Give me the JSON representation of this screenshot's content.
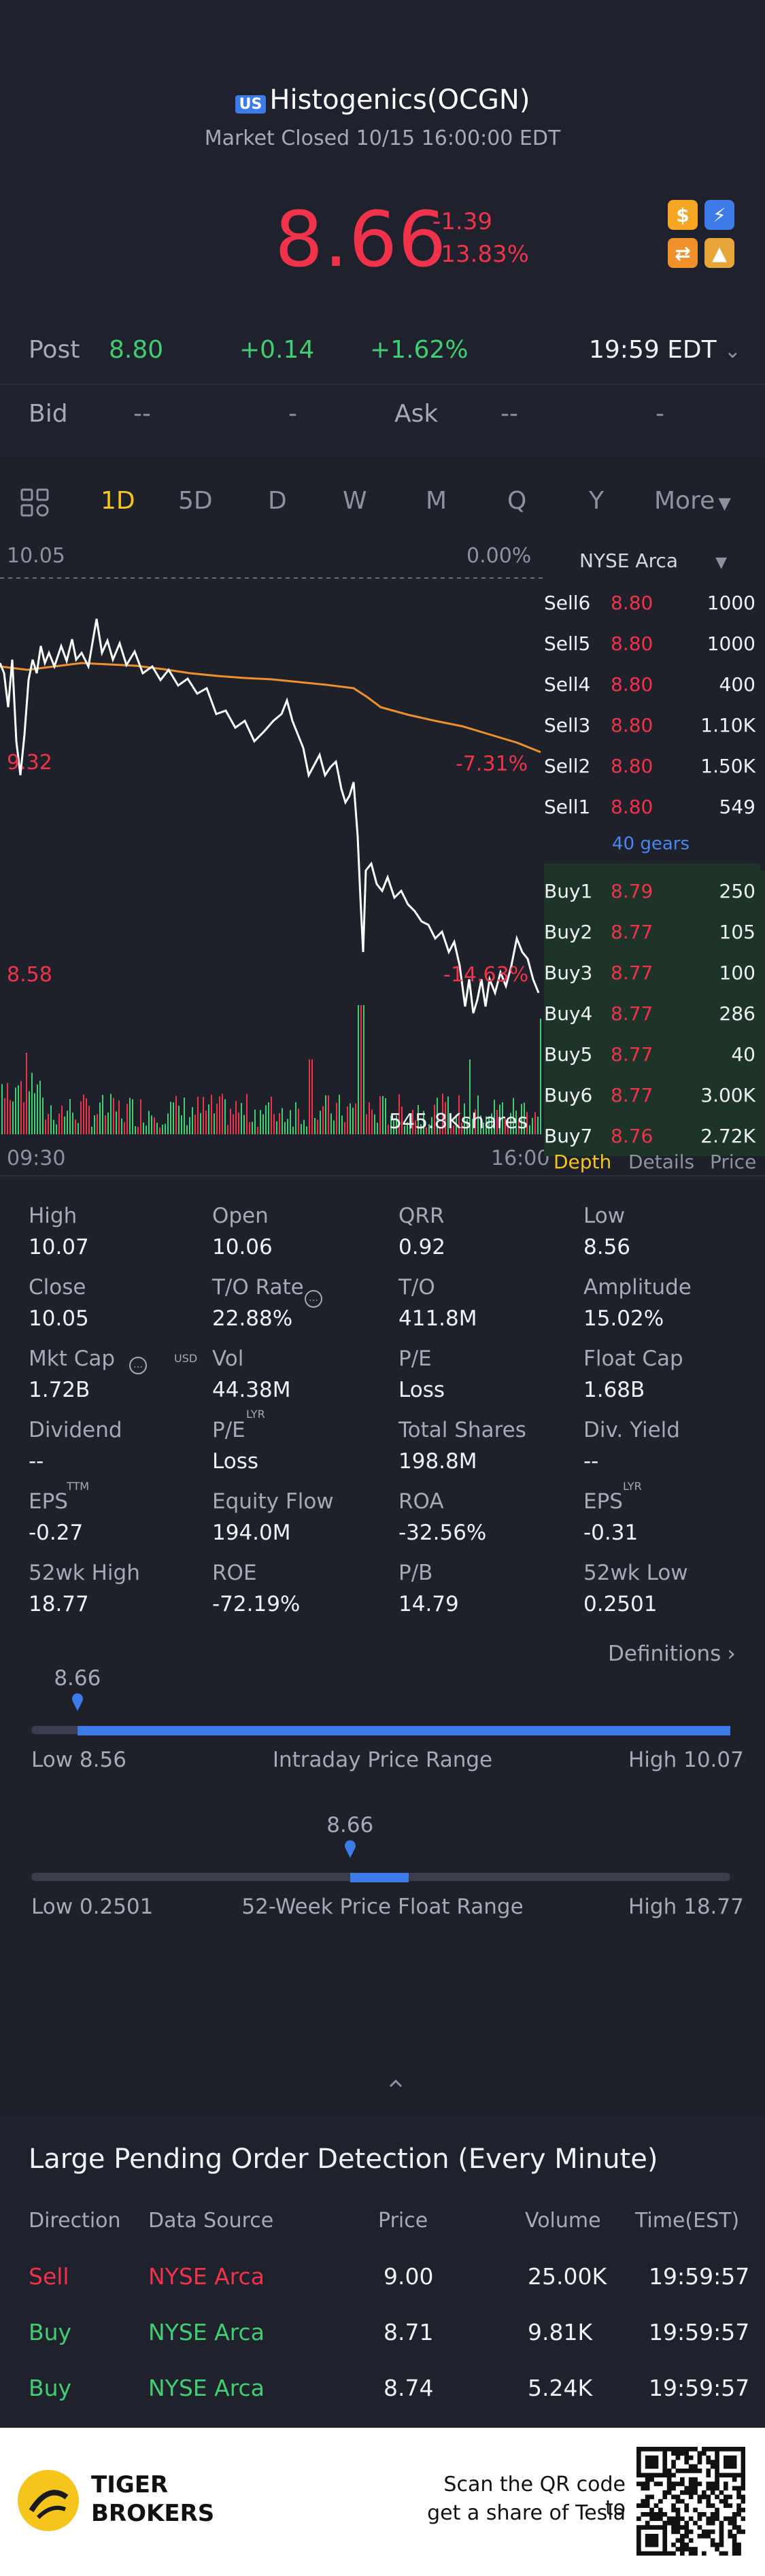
{
  "header": {
    "market_badge": "US",
    "name": "Histogenics(OCGN)",
    "status": "Market Closed 10/15 16:00:00 EDT",
    "price": "8.66",
    "change": "-1.39",
    "change_pct": "-13.83%",
    "icons": [
      "dollar-icon",
      "lightning-icon",
      "trade-icon",
      "education-icon"
    ]
  },
  "quote": {
    "post_label": "Post",
    "post_price": "8.80",
    "post_change": "+0.14",
    "post_change_pct": "+1.62%",
    "post_time": "19:59 EDT",
    "bid_label": "Bid",
    "bid_value": "--",
    "bid_size": "-",
    "ask_label": "Ask",
    "ask_value": "--",
    "ask_size": "-"
  },
  "tabs": [
    "1D",
    "5D",
    "D",
    "W",
    "M",
    "Q",
    "Y",
    "More"
  ],
  "active_tab": "1D",
  "chart": {
    "top_price": "10.05",
    "top_pct": "0.00%",
    "mid_price": "9.32",
    "mid_pct": "-7.31%",
    "low_price": "8.58",
    "low_pct": "-14.63%",
    "volume_label": "545.8Kshares",
    "time_start": "09:30",
    "time_end": "16:00",
    "colors": {
      "price_line": "#ffffff",
      "avg_line": "#f0902a",
      "vol_up": "#3fcf72",
      "vol_down": "#f0324b"
    }
  },
  "orderbook": {
    "exchange": "NYSE Arca",
    "gears_label": "40 gears",
    "sells": [
      {
        "label": "Sell6",
        "price": "8.80",
        "size": "1000"
      },
      {
        "label": "Sell5",
        "price": "8.80",
        "size": "1000"
      },
      {
        "label": "Sell4",
        "price": "8.80",
        "size": "400"
      },
      {
        "label": "Sell3",
        "price": "8.80",
        "size": "1.10K"
      },
      {
        "label": "Sell2",
        "price": "8.80",
        "size": "1.50K"
      },
      {
        "label": "Sell1",
        "price": "8.80",
        "size": "549"
      }
    ],
    "buys": [
      {
        "label": "Buy1",
        "price": "8.79",
        "size": "250"
      },
      {
        "label": "Buy2",
        "price": "8.77",
        "size": "105"
      },
      {
        "label": "Buy3",
        "price": "8.77",
        "size": "100"
      },
      {
        "label": "Buy4",
        "price": "8.77",
        "size": "286"
      },
      {
        "label": "Buy5",
        "price": "8.77",
        "size": "40"
      },
      {
        "label": "Buy6",
        "price": "8.77",
        "size": "3.00K"
      },
      {
        "label": "Buy7",
        "price": "8.76",
        "size": "2.72K"
      }
    ],
    "tabs": [
      "Depth",
      "Details",
      "Price"
    ]
  },
  "stats": [
    [
      {
        "l": "High",
        "v": "10.07"
      },
      {
        "l": "Open",
        "v": "10.06"
      },
      {
        "l": "QRR",
        "v": "0.92"
      },
      {
        "l": "Low",
        "v": "8.56"
      }
    ],
    [
      {
        "l": "Close",
        "v": "10.05"
      },
      {
        "l": "T/O Rate",
        "v": "22.88%"
      },
      {
        "l": "T/O",
        "v": "411.8M"
      },
      {
        "l": "Amplitude",
        "v": "15.02%"
      }
    ],
    [
      {
        "l": "Mkt Cap",
        "v": "1.72B"
      },
      {
        "l": "Vol",
        "v": "44.38M"
      },
      {
        "l": "P/E",
        "v": "Loss"
      },
      {
        "l": "Float Cap",
        "v": "1.68B"
      }
    ],
    [
      {
        "l": "Dividend",
        "v": "--"
      },
      {
        "l": "P/E",
        "v": "Loss"
      },
      {
        "l": "Total Shares",
        "v": "198.8M"
      },
      {
        "l": "Div. Yield",
        "v": "--"
      }
    ],
    [
      {
        "l": "EPS",
        "v": "-0.27"
      },
      {
        "l": "Equity Flow",
        "v": "194.0M"
      },
      {
        "l": "ROA",
        "v": "-32.56%"
      },
      {
        "l": "EPS",
        "v": "-0.31"
      }
    ],
    [
      {
        "l": "52wk High",
        "v": "18.77"
      },
      {
        "l": "ROE",
        "v": "-72.19%"
      },
      {
        "l": "P/B",
        "v": "14.79"
      },
      {
        "l": "52wk Low",
        "v": "0.2501"
      }
    ]
  ],
  "stat_superscripts": {
    "mkt_cap": "USD",
    "pe_lyr": "LYR",
    "eps_ttm": "TTM",
    "eps_lyr": "LYR"
  },
  "definitions_label": "Definitions",
  "intraday_range": {
    "marker": "8.66",
    "low_label": "Low 8.56",
    "title": "Intraday Price Range",
    "high_label": "High 10.07",
    "position": 0.066
  },
  "week52_range": {
    "marker": "8.66",
    "low_label": "Low 0.2501",
    "title": "52-Week Price Float Range",
    "high_label": "High 18.77",
    "position": 0.456
  },
  "pending": {
    "title": "Large Pending Order Detection (Every Minute)",
    "headers": [
      "Direction",
      "Data Source",
      "Price",
      "Volume",
      "Time(EST)"
    ],
    "rows": [
      {
        "direction": "Sell",
        "source": "NYSE Arca",
        "price": "9.00",
        "volume": "25.00K",
        "time": "19:59:57"
      },
      {
        "direction": "Buy",
        "source": "NYSE Arca",
        "price": "8.71",
        "volume": "9.81K",
        "time": "19:59:57"
      },
      {
        "direction": "Buy",
        "source": "NYSE Arca",
        "price": "8.74",
        "volume": "5.24K",
        "time": "19:59:57"
      }
    ]
  },
  "footer": {
    "brand_line1": "TIGER",
    "brand_line2": "BROKERS",
    "qr_line1": "Scan the QR code to",
    "qr_line2": "get a share of Tesla"
  }
}
